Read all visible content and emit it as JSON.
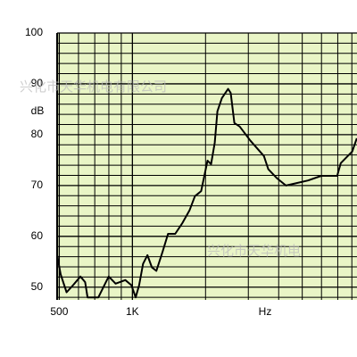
{
  "chart_data": {
    "type": "line",
    "y_label": "dB",
    "x_label": "Hz",
    "watermarks": [
      "兴化市天华机电有限公司",
      "兴化市天华机电"
    ],
    "x": [
      490,
      507,
      536,
      570,
      611,
      639,
      654,
      724,
      772,
      799,
      853,
      935,
      990,
      1031,
      1066,
      1106,
      1153,
      1203,
      1255,
      1332,
      1402,
      1500,
      1605,
      1718,
      1808,
      1918,
      2037,
      2108,
      2182,
      2238,
      2334,
      2476,
      2539,
      2627,
      2764,
      3059,
      3478,
      3624,
      3941,
      4285,
      4660,
      5284,
      5991,
      6960,
      7200,
      8034,
      8388
    ],
    "series": [
      {
        "color": "#000000",
        "values": [
          56.3,
          52.5,
          49,
          50.4,
          52.1,
          51,
          48,
          48,
          50.7,
          52.1,
          50.7,
          51.4,
          50.4,
          48,
          50.4,
          54.6,
          56.3,
          53.9,
          53.2,
          57,
          60.5,
          60.5,
          62.6,
          65.1,
          67.9,
          68.9,
          74.9,
          74.2,
          78.4,
          84.6,
          87.2,
          89,
          88.2,
          82.3,
          81.6,
          78.8,
          75.8,
          73.2,
          71.4,
          70,
          70.4,
          71,
          71.9,
          71.9,
          74.4,
          76.7,
          79.3
        ]
      }
    ],
    "xlim": [
      490,
      8400
    ],
    "log_x": true,
    "xticks": [
      500,
      {
        "value": 1000,
        "label": "1K"
      }
    ],
    "minor_xticks": [
      600,
      700,
      800,
      900,
      2000,
      3000,
      4000,
      5000,
      6000,
      7000,
      8000
    ],
    "ylim": [
      47.5,
      100
    ],
    "yticks": [
      50,
      60,
      70,
      80,
      90,
      100
    ],
    "minor_yticks": [
      48,
      52,
      54,
      56,
      58,
      62,
      64,
      66,
      68,
      72,
      74,
      76,
      78,
      82,
      84,
      86,
      88,
      92,
      94,
      96,
      98
    ],
    "grid": true,
    "plot_background": "#e9f5c6"
  }
}
